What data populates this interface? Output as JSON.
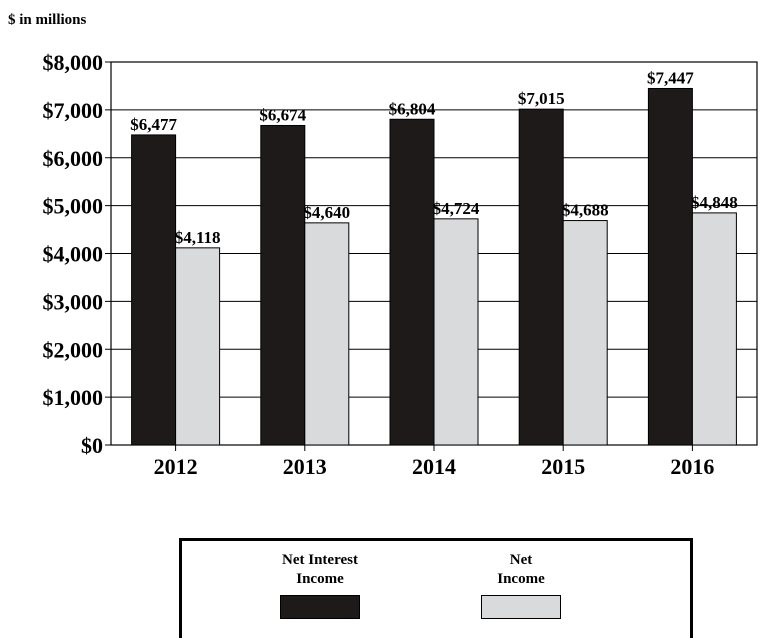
{
  "unit_label": "$ in millions",
  "chart_data": {
    "type": "bar",
    "categories": [
      "2012",
      "2013",
      "2014",
      "2015",
      "2016"
    ],
    "series": [
      {
        "name": "Net Interest Income",
        "values": [
          6477,
          6674,
          6804,
          7015,
          7447
        ],
        "labels": [
          "$6,477",
          "$6,674",
          "$6,804",
          "$7,015",
          "$7,447"
        ],
        "color": "#1e1a1a"
      },
      {
        "name": "Net Income",
        "values": [
          4118,
          4640,
          4724,
          4688,
          4848
        ],
        "labels": [
          "$4,118",
          "$4,640",
          "$4,724",
          "$4,688",
          "$4,848"
        ],
        "color": "#d9dadc"
      }
    ],
    "yticks": [
      "$0",
      "$1,000",
      "$2,000",
      "$3,000",
      "$4,000",
      "$5,000",
      "$6,000",
      "$7,000",
      "$8,000"
    ],
    "ylim": [
      0,
      8000
    ],
    "grid": true,
    "legend_position": "bottom-center"
  },
  "legend": {
    "net_interest_income": {
      "line1": "Net Interest",
      "line2": "Income"
    },
    "net_income": {
      "line1": "Net",
      "line2": "Income"
    }
  }
}
